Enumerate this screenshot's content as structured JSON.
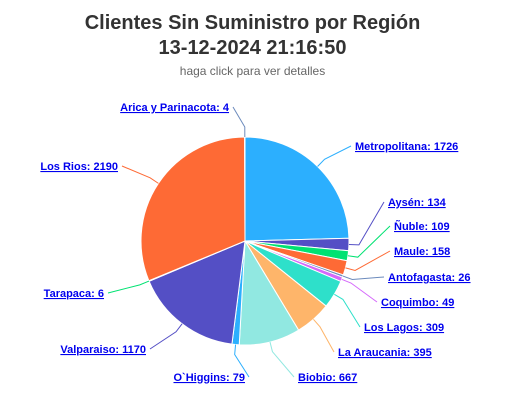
{
  "title_line1": "Clientes Sin Suministro por Región",
  "title_line2": "13-12-2024 21:16:50",
  "subtitle": "haga click para ver detalles",
  "chart_data": {
    "type": "pie",
    "title": "Clientes Sin Suministro por Región 13-12-2024 21:16:50",
    "subtitle": "haga click para ver detalles",
    "slices": [
      {
        "name": "Metropolitana",
        "value": 1726,
        "color": "#2caffe"
      },
      {
        "name": "Aysén",
        "value": 134,
        "color": "#544fc5"
      },
      {
        "name": "Ñuble",
        "value": 109,
        "color": "#00e272"
      },
      {
        "name": "Maule",
        "value": 158,
        "color": "#fe6a35"
      },
      {
        "name": "Antofagasta",
        "value": 26,
        "color": "#6b8abc"
      },
      {
        "name": "Coquimbo",
        "value": 49,
        "color": "#d568fb"
      },
      {
        "name": "Los Lagos",
        "value": 309,
        "color": "#2ee0ca"
      },
      {
        "name": "La Araucania",
        "value": 395,
        "color": "#feb56a"
      },
      {
        "name": "Biobio",
        "value": 667,
        "color": "#91e8e1"
      },
      {
        "name": "O`Higgins",
        "value": 79,
        "color": "#2caffe"
      },
      {
        "name": "Valparaiso",
        "value": 1170,
        "color": "#544fc5"
      },
      {
        "name": "Tarapaca",
        "value": 6,
        "color": "#00e272"
      },
      {
        "name": "Los Rios",
        "value": 2190,
        "color": "#fe6a35"
      },
      {
        "name": "Arica y Parinacota",
        "value": 4,
        "color": "#6b8abc"
      }
    ],
    "labels": [
      "Metropolitana: 1726",
      "Aysén: 134",
      "Ñuble: 109",
      "Maule: 158",
      "Antofagasta: 26",
      "Coquimbo: 49",
      "Los Lagos: 309",
      "La Araucania: 395",
      "Biobio: 667",
      "O`Higgins: 79",
      "Valparaiso: 1170",
      "Tarapaca: 6",
      "Los Rios: 2190",
      "Arica y Parinacota: 4"
    ]
  }
}
